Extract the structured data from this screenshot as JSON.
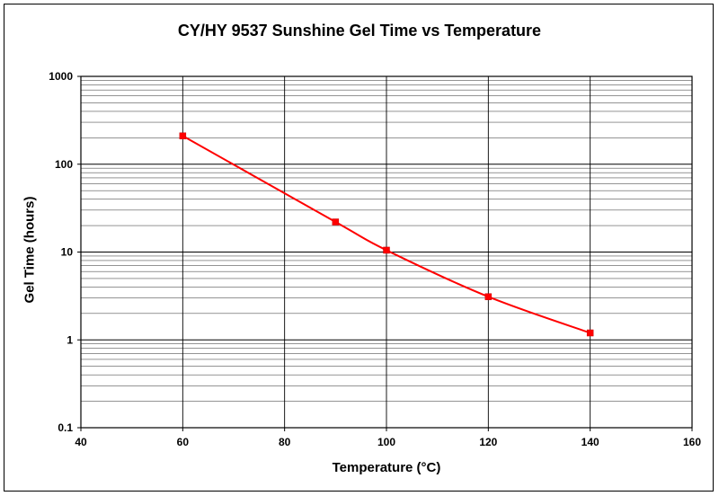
{
  "chart_data": {
    "type": "line",
    "title": "CY/HY 9537 Sunshine Gel Time vs Temperature",
    "xlabel": "Temperature (°C)",
    "ylabel": "Gel Time (hours)",
    "xlim": [
      40,
      160
    ],
    "ylim": [
      0.1,
      1000
    ],
    "yscale": "log",
    "xticks": [
      "40",
      "60",
      "80",
      "100",
      "120",
      "140",
      "160"
    ],
    "yticks": [
      "0.1",
      "1",
      "10",
      "100",
      "1000"
    ],
    "grid": true,
    "series": [
      {
        "name": "Gel Time",
        "color": "#ff0000",
        "x": [
          60,
          90,
          100,
          120,
          140
        ],
        "y": [
          210,
          22,
          10.5,
          3.1,
          1.2
        ]
      }
    ]
  }
}
